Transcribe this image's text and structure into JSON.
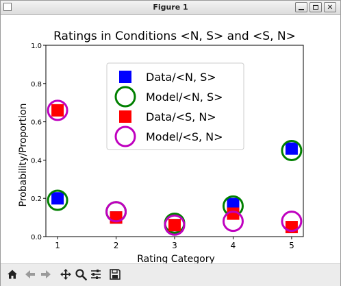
{
  "window": {
    "title": "Figure 1"
  },
  "toolbar": {
    "items": [
      {
        "name": "home-icon"
      },
      {
        "name": "back-arrow-icon"
      },
      {
        "name": "forward-arrow-icon"
      },
      {
        "name": "pan-icon"
      },
      {
        "name": "zoom-icon"
      },
      {
        "name": "configure-subplots-icon"
      },
      {
        "name": "save-icon"
      }
    ]
  },
  "chart_data": {
    "type": "scatter",
    "title": "Ratings in Conditions <N, S> and <S, N>",
    "xlabel": "Rating Category",
    "ylabel": "Probability/Proportion",
    "xlim": [
      0.8,
      5.2
    ],
    "ylim": [
      0.0,
      1.0
    ],
    "xticks": [
      1,
      2,
      3,
      4,
      5
    ],
    "yticks": [
      0.0,
      0.2,
      0.4,
      0.6,
      0.8,
      1.0
    ],
    "legend_position": "top-center",
    "grid": false,
    "series": [
      {
        "name": "Data/<N, S>",
        "marker": "square",
        "filled": true,
        "color": "#0000ff",
        "x": [
          1,
          2,
          3,
          4,
          5
        ],
        "y": [
          0.2,
          0.1,
          0.06,
          0.17,
          0.46
        ]
      },
      {
        "name": "Model/<N, S>",
        "marker": "circle",
        "filled": false,
        "color": "#008000",
        "x": [
          1,
          2,
          3,
          4,
          5
        ],
        "y": [
          0.19,
          0.13,
          0.07,
          0.16,
          0.45
        ]
      },
      {
        "name": "Data/<S, N>",
        "marker": "square",
        "filled": true,
        "color": "#ff0000",
        "x": [
          1,
          2,
          3,
          4,
          5
        ],
        "y": [
          0.66,
          0.1,
          0.06,
          0.12,
          0.05
        ]
      },
      {
        "name": "Model/<S, N>",
        "marker": "circle",
        "filled": false,
        "color": "#bf00bf",
        "x": [
          1,
          2,
          3,
          4,
          5
        ],
        "y": [
          0.66,
          0.13,
          0.06,
          0.08,
          0.08
        ]
      }
    ]
  }
}
